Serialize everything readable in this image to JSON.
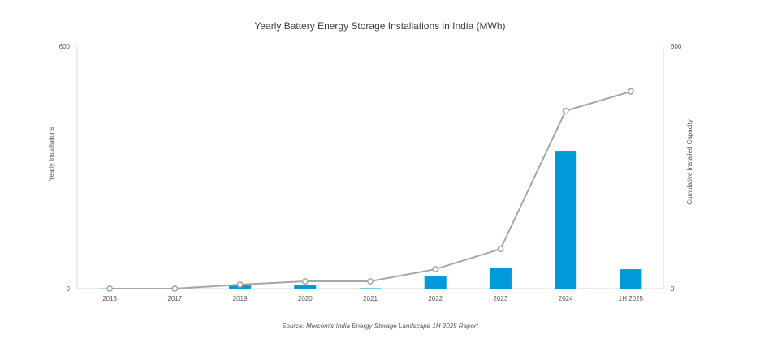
{
  "chart_data": {
    "type": "bar+line",
    "title": "Yearly Battery Energy Storage Installations in India (MWh)",
    "categories": [
      "2013",
      "2017",
      "2019",
      "2020",
      "2021",
      "2022",
      "2023",
      "2024",
      "1H 2025"
    ],
    "series": [
      {
        "name": "Yearly Installations",
        "type": "bar",
        "axis": "left",
        "color": "#009ADA",
        "values": [
          0.5,
          0,
          8,
          8,
          1,
          30,
          52,
          341,
          48
        ]
      },
      {
        "name": "Cumulative Installed  Capacity",
        "type": "line",
        "axis": "right",
        "color": "#A6A6A6",
        "values": [
          0,
          0,
          10,
          18,
          18,
          48,
          98,
          440,
          488
        ]
      }
    ],
    "ylabel": "Yearly Installations",
    "y2label": "Cumulative Installed  Capacity",
    "ylim": [
      0,
      600
    ],
    "y2lim": [
      0,
      600
    ],
    "yticks": [
      "0",
      "600"
    ],
    "y2ticks": [
      "0",
      "600"
    ],
    "grid": false,
    "legend": "none",
    "source": "Source: Mercom's India Energy Storage Landscape 1H 2025 Report"
  }
}
